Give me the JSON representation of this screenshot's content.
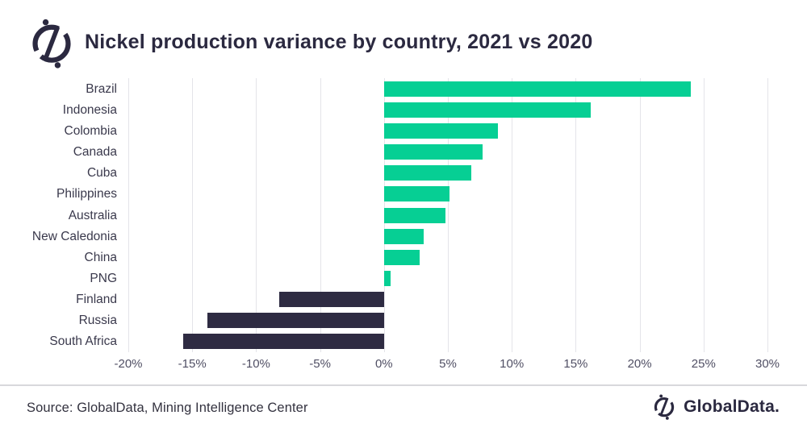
{
  "header": {
    "title": "Nickel production variance by country, 2021 vs 2020"
  },
  "footer": {
    "source": "Source: GlobalData, Mining Intelligence Center",
    "brand": "GlobalData."
  },
  "icons": {
    "logo": "globaldata-compass-logo"
  },
  "colors": {
    "positive_bar": "#06CF94",
    "negative_bar": "#2E2B42",
    "title_text": "#2B2940",
    "gridline": "#E4E4E9",
    "tick_text": "#504F64",
    "category_text": "#3A394C",
    "separator": "#D8D8DC",
    "background": "#FFFFFF"
  },
  "chart_data": {
    "type": "bar",
    "orientation": "horizontal",
    "title": "Nickel production variance by country, 2021 vs 2020",
    "categories": [
      "Brazil",
      "Indonesia",
      "Colombia",
      "Canada",
      "Cuba",
      "Philippines",
      "Australia",
      "New Caledonia",
      "China",
      "PNG",
      "Finland",
      "Russia",
      "South Africa"
    ],
    "values": [
      24.0,
      16.2,
      8.9,
      7.7,
      6.8,
      5.1,
      4.8,
      3.1,
      2.8,
      0.5,
      -8.2,
      -13.8,
      -15.7
    ],
    "unit": "%",
    "xlim": [
      -20,
      30
    ],
    "x_ticks": [
      "-20%",
      "-15%",
      "-10%",
      "-5%",
      "0%",
      "5%",
      "10%",
      "15%",
      "20%",
      "25%",
      "30%"
    ],
    "x_tick_values": [
      -20,
      -15,
      -10,
      -5,
      0,
      5,
      10,
      15,
      20,
      25,
      30
    ],
    "grid": "vertical",
    "legend": "none"
  }
}
